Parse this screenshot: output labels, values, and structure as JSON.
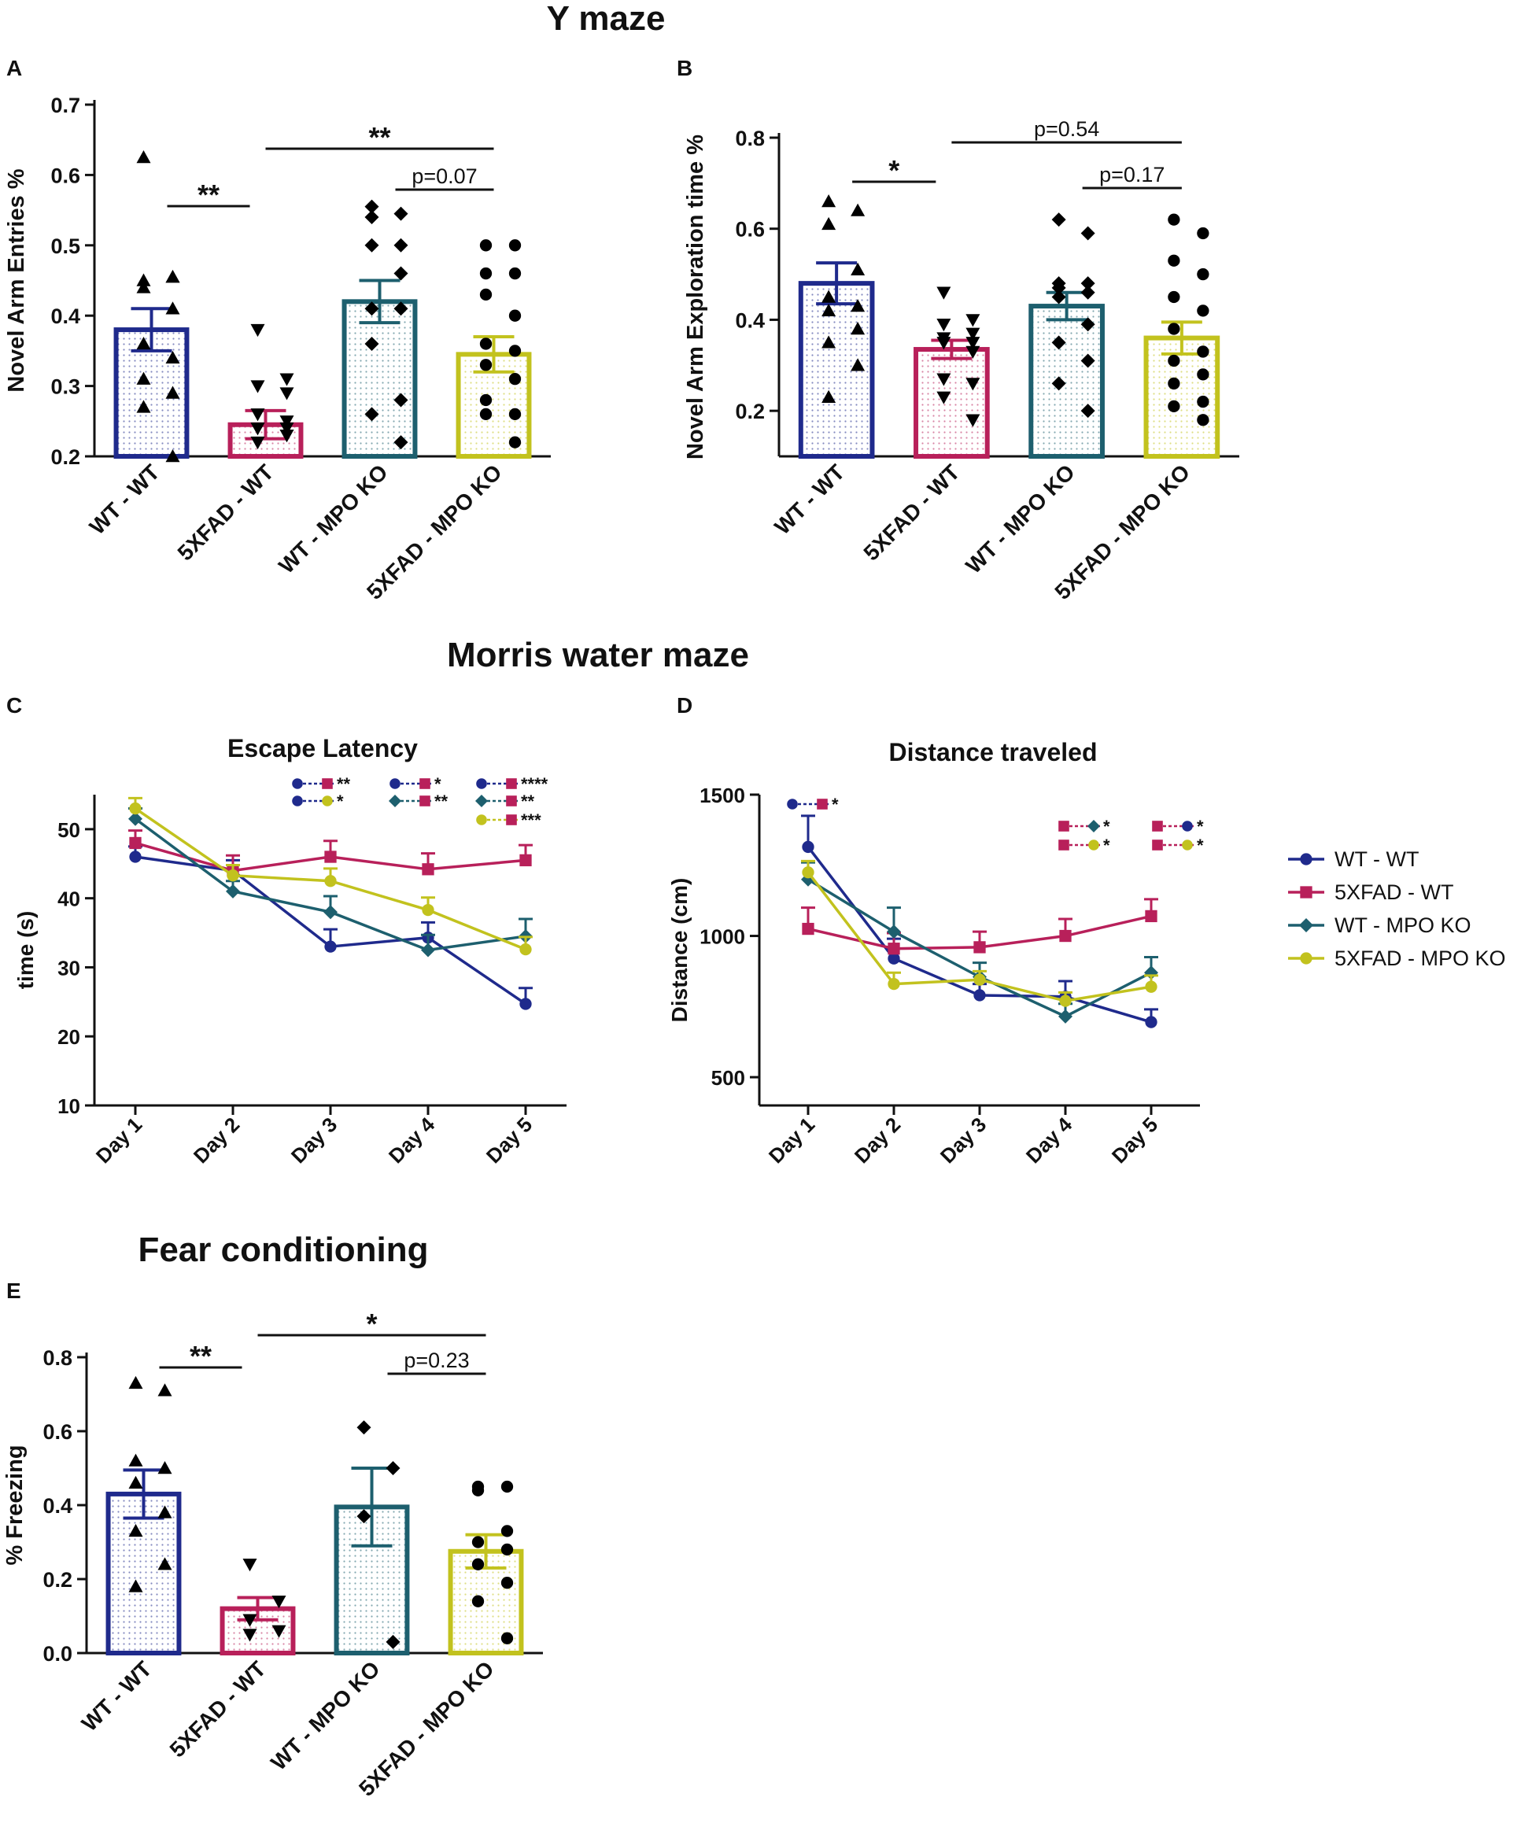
{
  "figure": {
    "section_titles": [
      "Y maze",
      "Morris water maze",
      "Fear conditioning"
    ],
    "groups": [
      "WT - WT",
      "5XFAD - WT",
      "WT - MPO KO",
      "5XFAD - MPO KO"
    ],
    "colors": {
      "WT - WT": "#1f2a8c",
      "5XFAD - WT": "#b8205a",
      "WT - MPO KO": "#1d5f6e",
      "5XFAD - MPO KO": "#c2c21e"
    },
    "markers": {
      "WT - WT": "triangle",
      "5XFAD - WT": "triangle-down",
      "WT - MPO KO": "diamond",
      "5XFAD - MPO KO": "circle"
    },
    "line_markers": {
      "WT - WT": "circle",
      "5XFAD - WT": "square",
      "WT - MPO KO": "diamond",
      "5XFAD - MPO KO": "circle"
    },
    "legend": [
      "WT - WT",
      "5XFAD - WT",
      "WT - MPO KO",
      "5XFAD - MPO KO"
    ]
  },
  "chart_data": [
    {
      "panel": "A",
      "type": "bar",
      "section": "Y maze",
      "ylabel": "Novel Arm Entries %",
      "ylim": [
        0.2,
        0.7
      ],
      "yticks": [
        0.2,
        0.3,
        0.4,
        0.5,
        0.6,
        0.7
      ],
      "ytick_labels": [
        "0.2",
        "0.3",
        "0.4",
        "0.5",
        "0.6",
        "0.7"
      ],
      "categories": [
        "WT - WT",
        "5XFAD - WT",
        "WT - MPO KO",
        "5XFAD - MPO KO"
      ],
      "values": [
        0.38,
        0.245,
        0.42,
        0.345
      ],
      "sem": [
        0.03,
        0.02,
        0.03,
        0.025
      ],
      "points": [
        [
          0.625,
          0.455,
          0.45,
          0.455,
          0.44,
          0.41,
          0.36,
          0.34,
          0.31,
          0.29,
          0.27,
          0.2
        ],
        [
          0.38,
          0.31,
          0.3,
          0.29,
          0.26,
          0.25,
          0.24,
          0.23,
          0.22,
          0.23,
          0.24,
          0.24
        ],
        [
          0.555,
          0.545,
          0.54,
          0.5,
          0.5,
          0.46,
          0.41,
          0.41,
          0.36,
          0.28,
          0.26,
          0.22
        ],
        [
          0.5,
          0.5,
          0.46,
          0.46,
          0.43,
          0.4,
          0.36,
          0.35,
          0.33,
          0.31,
          0.28,
          0.26,
          0.26,
          0.22
        ]
      ],
      "annotations": [
        {
          "from": 0,
          "to": 1,
          "label": "**"
        },
        {
          "from": 1,
          "to": 3,
          "label": "**"
        },
        {
          "from": 2,
          "to": 3,
          "label": "p=0.07"
        }
      ]
    },
    {
      "panel": "B",
      "type": "bar",
      "section": "Y maze",
      "ylabel": "Novel Arm Exploration time %",
      "ylim": [
        0.1,
        0.8
      ],
      "yticks": [
        0.2,
        0.4,
        0.6,
        0.8
      ],
      "ytick_labels": [
        "0.2",
        "0.4",
        "0.6",
        "0.8"
      ],
      "categories": [
        "WT - WT",
        "5XFAD - WT",
        "WT - MPO KO",
        "5XFAD - MPO KO"
      ],
      "values": [
        0.48,
        0.335,
        0.43,
        0.36
      ],
      "sem": [
        0.045,
        0.02,
        0.03,
        0.035
      ],
      "points": [
        [
          0.66,
          0.64,
          0.61,
          0.51,
          0.45,
          0.43,
          0.42,
          0.38,
          0.35,
          0.3,
          0.23
        ],
        [
          0.46,
          0.4,
          0.39,
          0.37,
          0.36,
          0.35,
          0.35,
          0.33,
          0.27,
          0.26,
          0.23,
          0.18
        ],
        [
          0.62,
          0.59,
          0.48,
          0.48,
          0.47,
          0.46,
          0.45,
          0.39,
          0.35,
          0.31,
          0.26,
          0.2
        ],
        [
          0.62,
          0.59,
          0.53,
          0.5,
          0.45,
          0.42,
          0.38,
          0.33,
          0.31,
          0.28,
          0.26,
          0.22,
          0.21,
          0.18
        ]
      ],
      "annotations": [
        {
          "from": 0,
          "to": 1,
          "label": "*"
        },
        {
          "from": 1,
          "to": 3,
          "label": "p=0.54"
        },
        {
          "from": 2,
          "to": 3,
          "label": "p=0.17"
        }
      ]
    },
    {
      "panel": "C",
      "type": "line",
      "section": "Morris water maze",
      "title": "Escape Latency",
      "ylabel": "time (s)",
      "ylim": [
        10,
        55
      ],
      "yticks": [
        10,
        20,
        30,
        40,
        50
      ],
      "ytick_labels": [
        "10",
        "20",
        "30",
        "40",
        "50"
      ],
      "x": [
        "Day 1",
        "Day 2",
        "Day 3",
        "Day 4",
        "Day 5"
      ],
      "series": [
        {
          "name": "WT - WT",
          "values": [
            46,
            44,
            33,
            34.3,
            24.7
          ],
          "err": [
            1.5,
            1.5,
            2.5,
            2.2,
            2.3
          ]
        },
        {
          "name": "5XFAD - WT",
          "values": [
            48,
            44,
            46,
            44.2,
            45.5
          ],
          "err": [
            1.8,
            2.2,
            2.3,
            2.3,
            2.2
          ]
        },
        {
          "name": "WT - MPO KO",
          "values": [
            51.5,
            41,
            38,
            32.5,
            34.5
          ],
          "err": [
            1.5,
            1.5,
            2.3,
            2.2,
            2.5
          ]
        },
        {
          "name": "5XFAD - MPO KO",
          "values": [
            53,
            43.3,
            42.5,
            38.3,
            32.6
          ],
          "err": [
            1.5,
            1.5,
            1.8,
            1.8,
            1.8
          ]
        }
      ],
      "significance": [
        {
          "pair": [
            "WT - WT",
            "5XFAD - WT"
          ],
          "label": "**",
          "day": "Day 3"
        },
        {
          "pair": [
            "WT - WT",
            "5XFAD - MPO KO"
          ],
          "label": "*",
          "day": "Day 3"
        },
        {
          "pair": [
            "WT - WT",
            "5XFAD - WT"
          ],
          "label": "*",
          "day": "Day 4"
        },
        {
          "pair": [
            "WT - MPO KO",
            "5XFAD - WT"
          ],
          "label": "**",
          "day": "Day 4"
        },
        {
          "pair": [
            "WT - WT",
            "5XFAD - WT"
          ],
          "label": "****",
          "day": "Day 5"
        },
        {
          "pair": [
            "WT - MPO KO",
            "5XFAD - WT"
          ],
          "label": "**",
          "day": "Day 5"
        },
        {
          "pair": [
            "5XFAD - MPO KO",
            "5XFAD - WT"
          ],
          "label": "***",
          "day": "Day 5"
        }
      ]
    },
    {
      "panel": "D",
      "type": "line",
      "section": "Morris water maze",
      "title": "Distance traveled",
      "ylabel": "Distance (cm)",
      "ylim": [
        400,
        1500
      ],
      "yticks": [
        500,
        1000,
        1500
      ],
      "ytick_labels": [
        "500",
        "1000",
        "1500"
      ],
      "x": [
        "Day 1",
        "Day 2",
        "Day 3",
        "Day 4",
        "Day 5"
      ],
      "series": [
        {
          "name": "WT - WT",
          "values": [
            1315,
            920,
            790,
            785,
            695
          ],
          "err": [
            110,
            70,
            40,
            55,
            45
          ]
        },
        {
          "name": "5XFAD - WT",
          "values": [
            1025,
            955,
            960,
            1000,
            1070
          ],
          "err": [
            75,
            55,
            55,
            60,
            60
          ]
        },
        {
          "name": "WT - MPO KO",
          "values": [
            1200,
            1015,
            855,
            715,
            870
          ],
          "err": [
            60,
            85,
            50,
            45,
            55
          ]
        },
        {
          "name": "5XFAD - MPO KO",
          "values": [
            1225,
            830,
            845,
            770,
            820
          ],
          "err": [
            40,
            40,
            30,
            30,
            40
          ]
        }
      ],
      "significance": [
        {
          "pair": [
            "WT - WT",
            "5XFAD - WT"
          ],
          "label": "*",
          "day": "Day 1"
        },
        {
          "pair": [
            "5XFAD - WT",
            "WT - MPO KO"
          ],
          "label": "*",
          "day": "Day 4"
        },
        {
          "pair": [
            "5XFAD - WT",
            "5XFAD - MPO KO"
          ],
          "label": "*",
          "day": "Day 4"
        },
        {
          "pair": [
            "5XFAD - WT",
            "WT - WT"
          ],
          "label": "*",
          "day": "Day 5"
        },
        {
          "pair": [
            "5XFAD - WT",
            "5XFAD - MPO KO"
          ],
          "label": "*",
          "day": "Day 5"
        }
      ]
    },
    {
      "panel": "E",
      "type": "bar",
      "section": "Fear conditioning",
      "ylabel": "% Freezing",
      "ylim": [
        0,
        0.8
      ],
      "yticks": [
        0,
        0.2,
        0.4,
        0.6,
        0.8
      ],
      "ytick_labels": [
        "0.0",
        "0.2",
        "0.4",
        "0.6",
        "0.8"
      ],
      "categories": [
        "WT - WT",
        "5XFAD - WT",
        "WT - MPO KO",
        "5XFAD - MPO KO"
      ],
      "values": [
        0.43,
        0.12,
        0.395,
        0.275
      ],
      "sem": [
        0.065,
        0.03,
        0.105,
        0.045
      ],
      "points": [
        [
          0.73,
          0.71,
          0.52,
          0.5,
          0.46,
          0.38,
          0.33,
          0.24,
          0.18
        ],
        [
          0.24,
          0.14,
          0.09,
          0.06,
          0.05
        ],
        [
          0.61,
          0.5,
          0.37,
          0.03
        ],
        [
          0.45,
          0.45,
          0.44,
          0.33,
          0.3,
          0.28,
          0.24,
          0.19,
          0.14,
          0.04
        ]
      ],
      "annotations": [
        {
          "from": 0,
          "to": 1,
          "label": "**"
        },
        {
          "from": 1,
          "to": 3,
          "label": "*"
        },
        {
          "from": 2,
          "to": 3,
          "label": "p=0.23"
        }
      ]
    }
  ]
}
